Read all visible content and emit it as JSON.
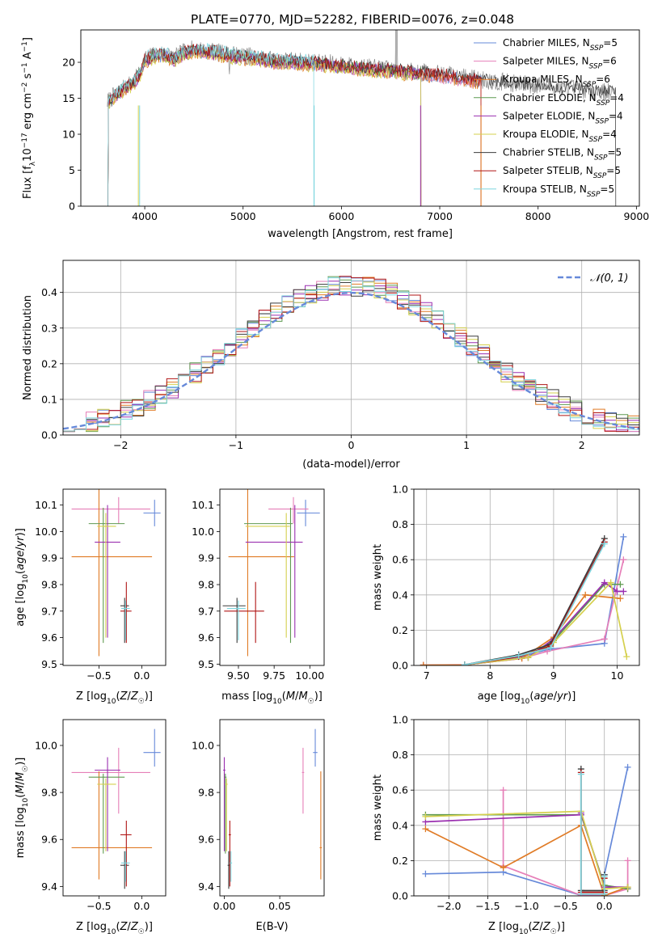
{
  "figure_title": "PLATE=0770, MJD=52282, FIBERID=0076, z=0.048",
  "colors": {
    "Chabrier MILES": "#6689d9",
    "Salpeter MILES": "#e67fb8",
    "Kroupa MILES": "#e07b26",
    "Chabrier ELODIE": "#5f9a50",
    "Salpeter ELODIE": "#9a2fb0",
    "Kroupa ELODIE": "#d5d04e",
    "Chabrier STELIB": "#3b3b3b",
    "Salpeter STELIB": "#b01515",
    "Kroupa STELIB": "#7fd6df"
  },
  "chart_data": [
    {
      "id": "spectrum",
      "type": "line",
      "title": "",
      "xlabel": "wavelength [Angstrom, rest frame]",
      "ylabel": "Flux [f_λ10^-17 erg cm^-2 s^-1 A^-1]",
      "xlim": [
        3350,
        9030
      ],
      "ylim": [
        0,
        24.5
      ],
      "xticks": [
        4000,
        5000,
        6000,
        7000,
        8000,
        9000
      ],
      "yticks": [
        0,
        5,
        10,
        15,
        20
      ],
      "grid": false,
      "legend_position": "top-right",
      "data_x": [
        3620,
        3700,
        3800,
        3900,
        3950,
        4000,
        4100,
        4200,
        4300,
        4400,
        4500,
        4700,
        4900,
        5100,
        5300,
        5500,
        5700,
        5900,
        6100,
        6300,
        6500,
        6700,
        6900,
        7100,
        7300,
        7400,
        7600,
        7800,
        8000,
        8200,
        8400,
        8600,
        8780
      ],
      "data_y": [
        14.5,
        15.5,
        16.5,
        17.5,
        18.5,
        20.5,
        21.0,
        21.3,
        20.5,
        21.5,
        21.8,
        21.5,
        21.0,
        20.8,
        20.3,
        20.2,
        20.0,
        19.8,
        19.5,
        19.2,
        19.0,
        18.7,
        18.5,
        18.2,
        17.8,
        17.6,
        17.3,
        17.0,
        16.8,
        16.5,
        16.3,
        16.0,
        15.8
      ],
      "models": [
        {
          "name": "Chabrier MILES",
          "ssp": 5,
          "end": 7420,
          "shape": [
            14.3,
            15.3,
            16.3,
            17.2,
            18.2,
            20.2,
            20.7,
            21.0,
            20.3,
            21.2,
            21.5,
            21.2,
            20.7,
            20.5,
            20.0,
            19.9,
            19.7,
            19.5,
            19.2,
            18.9,
            18.7,
            18.4,
            18.2,
            17.9,
            17.5,
            17.3
          ]
        },
        {
          "name": "Salpeter MILES",
          "ssp": 6,
          "end": 7420,
          "shape": [
            14.2,
            15.2,
            16.2,
            17.1,
            18.1,
            20.1,
            20.6,
            20.9,
            20.2,
            21.1,
            21.4,
            21.1,
            20.6,
            20.4,
            19.9,
            19.8,
            19.6,
            19.4,
            19.1,
            18.8,
            18.6,
            18.3,
            18.1,
            17.8,
            17.4,
            17.2
          ]
        },
        {
          "name": "Kroupa MILES",
          "ssp": 6,
          "end": 7420,
          "shape": [
            14.0,
            15.0,
            16.0,
            17.0,
            18.0,
            20.0,
            20.5,
            20.8,
            20.1,
            21.0,
            21.3,
            21.0,
            20.5,
            20.3,
            19.8,
            19.7,
            19.5,
            19.3,
            19.0,
            18.7,
            18.5,
            18.2,
            18.0,
            17.7,
            17.3,
            17.1
          ]
        },
        {
          "name": "Chabrier ELODIE",
          "ssp": 4,
          "end": 6810,
          "shape": [
            14.4,
            15.4,
            16.4,
            17.3,
            18.3,
            20.3,
            20.8,
            21.1,
            20.4,
            21.3,
            21.6,
            21.3,
            20.8,
            20.6,
            20.1,
            20.0,
            19.8,
            19.6,
            19.3,
            19.0,
            18.8,
            18.5
          ]
        },
        {
          "name": "Salpeter ELODIE",
          "ssp": 4,
          "end": 6810,
          "shape": [
            14.3,
            15.3,
            16.3,
            17.2,
            18.2,
            20.2,
            20.7,
            21.0,
            20.3,
            21.2,
            21.5,
            21.2,
            20.7,
            20.5,
            20.0,
            19.9,
            19.7,
            19.5,
            19.2,
            18.9,
            18.7,
            18.4
          ]
        },
        {
          "name": "Kroupa ELODIE",
          "ssp": 4,
          "end": 6810,
          "shape": [
            14.1,
            15.1,
            16.1,
            17.0,
            18.0,
            20.0,
            20.5,
            20.8,
            20.1,
            21.0,
            21.3,
            21.0,
            20.5,
            20.3,
            19.8,
            19.7,
            19.5,
            19.3,
            19.0,
            18.7,
            18.5,
            18.2
          ]
        },
        {
          "name": "Chabrier STELIB",
          "ssp": 5,
          "end": 8790,
          "shape": [
            14.6,
            15.6,
            16.6,
            17.6,
            18.6,
            20.6,
            21.1,
            21.4,
            20.6,
            21.6,
            21.9,
            21.6,
            21.1,
            20.9,
            20.4,
            20.3,
            20.1,
            19.9,
            19.6,
            19.3,
            19.1,
            18.8,
            18.6,
            18.3,
            17.9,
            17.7,
            17.4,
            17.1,
            16.9,
            16.6,
            16.4,
            16.1,
            15.9
          ]
        },
        {
          "name": "Salpeter STELIB",
          "ssp": 5,
          "end": 7420,
          "shape": [
            14.5,
            15.5,
            16.5,
            17.5,
            18.5,
            20.5,
            21.0,
            21.3,
            20.5,
            21.5,
            21.8,
            21.5,
            21.0,
            20.8,
            20.3,
            20.2,
            20.0,
            19.8,
            19.5,
            19.2,
            19.0,
            18.7,
            18.5,
            18.2,
            17.8,
            17.6
          ]
        },
        {
          "name": "Kroupa STELIB",
          "ssp": 5,
          "end": 5720,
          "shape": [
            14.7,
            15.7,
            16.7,
            17.7,
            18.7,
            20.7,
            21.2,
            21.5,
            20.7,
            21.7,
            22.0,
            21.7,
            21.2,
            21.0,
            20.5,
            20.4,
            20.2
          ]
        }
      ]
    },
    {
      "id": "residuals",
      "type": "histogram",
      "xlabel": "(data-model)/error",
      "ylabel": "Normed distribution",
      "xlim": [
        -2.5,
        2.5
      ],
      "ylim": [
        0,
        0.49
      ],
      "xticks": [
        -2,
        -1,
        0,
        1,
        2
      ],
      "yticks": [
        0.0,
        0.1,
        0.2,
        0.3,
        0.4
      ],
      "grid": true,
      "legend_position": "top-right",
      "legend_label": "𝒩(0, 1)",
      "bin_width": 0.1
    },
    {
      "id": "age-vs-Z",
      "type": "errorbar",
      "xlabel": "Z [log10(Z/Z☉)]",
      "ylabel": "age  [log10(age/yr)]",
      "xlim": [
        -0.92,
        0.28
      ],
      "ylim": [
        9.495,
        10.16
      ],
      "xticks": [
        -0.5,
        0.0
      ],
      "yticks": [
        9.5,
        9.6,
        9.7,
        9.8,
        9.9,
        10.0,
        10.1
      ],
      "grid": false
    },
    {
      "id": "age-vs-mass",
      "type": "errorbar",
      "xlabel": "mass [log10(M/M☉)]",
      "ylabel": "",
      "xlim": [
        9.37,
        10.1
      ],
      "ylim": [
        9.495,
        10.16
      ],
      "xticks": [
        9.5,
        9.75,
        10.0
      ],
      "yticks": [
        9.5,
        9.6,
        9.7,
        9.8,
        9.9,
        10.0,
        10.1
      ],
      "grid": false
    },
    {
      "id": "mass-weight-vs-age",
      "type": "line",
      "xlabel": "age  [log10(age/yr)]",
      "ylabel": "mass weight",
      "xlim": [
        6.8,
        10.35
      ],
      "ylim": [
        0,
        1.0
      ],
      "xticks": [
        7,
        8,
        9,
        10
      ],
      "yticks": [
        0.0,
        0.2,
        0.4,
        0.6,
        0.8,
        1.0
      ],
      "grid": true,
      "series": [
        {
          "model": "Chabrier MILES",
          "x": [
            6.95,
            7.6,
            8.5,
            8.9,
            9.8,
            10.1
          ],
          "y": [
            0.002,
            0.003,
            0.05,
            0.09,
            0.125,
            0.73
          ]
        },
        {
          "model": "Salpeter MILES",
          "x": [
            6.95,
            7.6,
            8.5,
            8.9,
            9.8,
            10.1
          ],
          "y": [
            0.002,
            0.004,
            0.04,
            0.08,
            0.15,
            0.6
          ]
        },
        {
          "model": "Kroupa MILES",
          "x": [
            6.95,
            7.6,
            8.5,
            9.0,
            9.5,
            10.05
          ],
          "y": [
            0.002,
            0.003,
            0.04,
            0.16,
            0.4,
            0.38
          ]
        },
        {
          "model": "Chabrier ELODIE",
          "x": [
            7.6,
            8.6,
            9.0,
            9.8,
            10.05
          ],
          "y": [
            0.004,
            0.045,
            0.14,
            0.46,
            0.46
          ]
        },
        {
          "model": "Salpeter ELODIE",
          "x": [
            7.6,
            8.6,
            9.0,
            9.8,
            10.0,
            10.1
          ],
          "y": [
            0.004,
            0.045,
            0.15,
            0.47,
            0.42,
            0.42
          ]
        },
        {
          "model": "Kroupa ELODIE",
          "x": [
            7.6,
            8.6,
            9.0,
            9.9,
            10.15
          ],
          "y": [
            0.004,
            0.045,
            0.13,
            0.47,
            0.05
          ]
        },
        {
          "model": "Chabrier STELIB",
          "x": [
            7.6,
            8.45,
            8.95,
            9.8
          ],
          "y": [
            0.004,
            0.06,
            0.12,
            0.72
          ]
        },
        {
          "model": "Salpeter STELIB",
          "x": [
            7.6,
            8.45,
            8.95,
            9.8
          ],
          "y": [
            0.004,
            0.05,
            0.11,
            0.7
          ]
        },
        {
          "model": "Kroupa STELIB",
          "x": [
            7.6,
            8.45,
            8.95,
            9.8
          ],
          "y": [
            0.004,
            0.055,
            0.1,
            0.69
          ]
        }
      ]
    },
    {
      "id": "mass-vs-Z",
      "type": "errorbar",
      "xlabel": "Z [log10(Z/Z☉)]",
      "ylabel": "mass [log10(M/M☉)]",
      "xlim": [
        -0.92,
        0.28
      ],
      "ylim": [
        9.36,
        10.11
      ],
      "xticks": [
        -0.5,
        0.0
      ],
      "yticks": [
        9.4,
        9.6,
        9.8,
        10.0
      ],
      "grid": false
    },
    {
      "id": "mass-vs-EBV",
      "type": "errorbar",
      "xlabel": "E(B-V)",
      "ylabel": "",
      "xlim": [
        -0.004,
        0.09
      ],
      "ylim": [
        9.36,
        10.11
      ],
      "xticks": [
        0.0,
        0.05
      ],
      "yticks": [
        9.4,
        9.6,
        9.8,
        10.0
      ],
      "grid": false
    },
    {
      "id": "mass-weight-vs-Z",
      "type": "line",
      "xlabel": "Z [log10(Z/Z☉)]",
      "ylabel": "mass weight",
      "xlim": [
        -2.45,
        0.45
      ],
      "ylim": [
        0,
        1.0
      ],
      "xticks": [
        -2.0,
        -1.5,
        -1.0,
        -0.5,
        0.0
      ],
      "yticks": [
        0.0,
        0.2,
        0.4,
        0.6,
        0.8,
        1.0
      ],
      "grid": true,
      "series": [
        {
          "model": "Chabrier MILES",
          "x": [
            -2.3,
            -1.3,
            -0.3,
            0.0,
            0.0,
            0.3
          ],
          "y": [
            0.125,
            0.135,
            0.003,
            0.002,
            0.12,
            0.73
          ]
        },
        {
          "model": "Salpeter MILES",
          "x": [
            -1.3,
            -1.3,
            -0.3,
            0.0,
            0.3,
            0.3
          ],
          "y": [
            0.6,
            0.17,
            0.003,
            0.002,
            0.04,
            0.2
          ]
        },
        {
          "model": "Kroupa MILES",
          "x": [
            -2.3,
            -1.3,
            -0.3,
            0.0,
            0.3
          ],
          "y": [
            0.38,
            0.16,
            0.4,
            0.002,
            0.05
          ]
        },
        {
          "model": "Chabrier ELODIE",
          "x": [
            -2.3,
            -0.3,
            0.0,
            0.3
          ],
          "y": [
            0.46,
            0.46,
            0.06,
            0.04
          ]
        },
        {
          "model": "Salpeter ELODIE",
          "x": [
            -2.3,
            -0.3,
            -0.3,
            0.0,
            0.3
          ],
          "y": [
            0.42,
            0.46,
            0.47,
            0.05,
            0.05
          ]
        },
        {
          "model": "Kroupa ELODIE",
          "x": [
            -2.3,
            -0.3,
            0.0,
            0.3
          ],
          "y": [
            0.45,
            0.48,
            0.04,
            0.05
          ]
        },
        {
          "model": "Chabrier STELIB",
          "x": [
            -0.3,
            -0.3,
            0.0,
            0.0
          ],
          "y": [
            0.72,
            0.03,
            0.03,
            0.12
          ]
        },
        {
          "model": "Salpeter STELIB",
          "x": [
            -0.3,
            -0.3,
            0.0,
            0.0
          ],
          "y": [
            0.7,
            0.02,
            0.02,
            0.1
          ]
        },
        {
          "model": "Kroupa STELIB",
          "x": [
            -0.3,
            -0.3,
            0.0,
            0.0
          ],
          "y": [
            0.69,
            0.01,
            0.01,
            0.11
          ]
        }
      ]
    }
  ],
  "fit_results": [
    {
      "model": "Chabrier MILES",
      "age": 10.07,
      "age_lo": 10.02,
      "age_hi": 10.12,
      "Z": 0.15,
      "Z_lo": 0.02,
      "Z_hi": 0.22,
      "mass": 9.97,
      "mass_lo": 9.91,
      "mass_hi": 10.07,
      "ebv": 0.082,
      "ebv_lo": 0.08,
      "ebv_hi": 0.084
    },
    {
      "model": "Salpeter MILES",
      "age": 10.085,
      "age_lo": 10.03,
      "age_hi": 10.13,
      "Z": -0.27,
      "Z_lo": -0.82,
      "Z_hi": 0.1,
      "mass": 9.885,
      "mass_lo": 9.71,
      "mass_hi": 9.99,
      "ebv": 0.071,
      "ebv_lo": 0.07,
      "ebv_hi": 0.072
    },
    {
      "model": "Kroupa MILES",
      "age": 9.905,
      "age_lo": 9.53,
      "age_hi": 10.16,
      "Z": -0.5,
      "Z_lo": -0.82,
      "Z_hi": 0.12,
      "mass": 9.565,
      "mass_lo": 9.43,
      "mass_hi": 9.89,
      "ebv": 0.087,
      "ebv_lo": 0.086,
      "ebv_hi": 0.088
    },
    {
      "model": "Chabrier ELODIE",
      "age": 10.03,
      "age_lo": 9.58,
      "age_hi": 10.09,
      "Z": -0.45,
      "Z_lo": -0.62,
      "Z_hi": -0.2,
      "mass": 9.865,
      "mass_lo": 9.54,
      "mass_hi": 9.88,
      "ebv": 0.001,
      "ebv_lo": 0.0,
      "ebv_hi": 0.002
    },
    {
      "model": "Salpeter ELODIE",
      "age": 9.96,
      "age_lo": 9.6,
      "age_hi": 10.1,
      "Z": -0.4,
      "Z_lo": -0.55,
      "Z_hi": -0.25,
      "mass": 9.895,
      "mass_lo": 9.55,
      "mass_hi": 9.95,
      "ebv": 0.0,
      "ebv_lo": -0.001,
      "ebv_hi": 0.001
    },
    {
      "model": "Kroupa ELODIE",
      "age": 10.02,
      "age_lo": 9.6,
      "age_hi": 10.07,
      "Z": -0.42,
      "Z_lo": -0.52,
      "Z_hi": -0.3,
      "mass": 9.835,
      "mass_lo": 9.55,
      "mass_hi": 9.86,
      "ebv": 0.002,
      "ebv_lo": 0.001,
      "ebv_hi": 0.003
    },
    {
      "model": "Chabrier STELIB",
      "age": 9.72,
      "age_lo": 9.58,
      "age_hi": 9.75,
      "Z": -0.2,
      "Z_lo": -0.25,
      "Z_hi": -0.15,
      "mass": 9.49,
      "mass_lo": 9.39,
      "mass_hi": 9.55,
      "ebv": 0.004,
      "ebv_lo": 0.003,
      "ebv_hi": 0.005
    },
    {
      "model": "Salpeter STELIB",
      "age": 9.7,
      "age_lo": 9.58,
      "age_hi": 9.81,
      "Z": -0.18,
      "Z_lo": -0.25,
      "Z_hi": -0.12,
      "mass": 9.62,
      "mass_lo": 9.4,
      "mass_hi": 9.68,
      "ebv": 0.005,
      "ebv_lo": 0.004,
      "ebv_hi": 0.006
    },
    {
      "model": "Kroupa STELIB",
      "age": 9.71,
      "age_lo": 9.59,
      "age_hi": 9.74,
      "Z": -0.19,
      "Z_lo": -0.24,
      "Z_hi": -0.14,
      "mass": 9.5,
      "mass_lo": 9.42,
      "mass_hi": 9.55,
      "ebv": 0.006,
      "ebv_lo": 0.005,
      "ebv_hi": 0.007
    }
  ]
}
